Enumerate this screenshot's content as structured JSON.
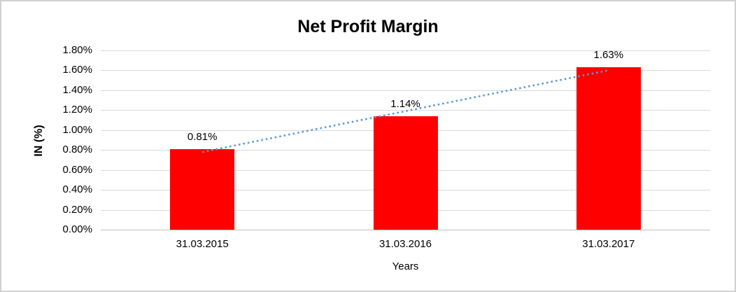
{
  "chart_data": {
    "type": "bar",
    "title": "Net Profit Margin",
    "xlabel": "Years",
    "ylabel": "IN (%)",
    "categories": [
      "31.03.2015",
      "31.03.2016",
      "31.03.2017"
    ],
    "values": [
      0.81,
      1.14,
      1.63
    ],
    "data_labels": [
      "0.81%",
      "1.14%",
      "1.63%"
    ],
    "ylim": [
      0,
      1.8
    ],
    "ytick_values": [
      0.0,
      0.2,
      0.4,
      0.6,
      0.8,
      1.0,
      1.2,
      1.4,
      1.6,
      1.8
    ],
    "ytick_labels": [
      "0.00%",
      "0.20%",
      "0.40%",
      "0.60%",
      "0.80%",
      "1.00%",
      "1.20%",
      "1.40%",
      "1.60%",
      "1.80%"
    ],
    "grid": true,
    "legend_position": "none",
    "bar_color": "#FF0000",
    "trendline": {
      "type": "linear",
      "style": "dotted",
      "color": "#5B9BD5",
      "start_value": 0.78,
      "end_value": 1.6
    }
  },
  "colors": {
    "gridline": "#d9d9d9",
    "axis_line": "#bfbfbf",
    "text": "#000000",
    "frame_border": "#d0d0d0",
    "background": "#ffffff"
  }
}
